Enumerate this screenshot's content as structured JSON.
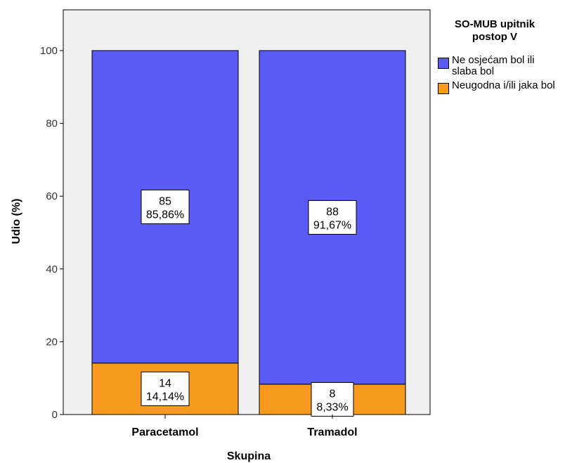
{
  "chart_data": {
    "type": "bar",
    "stacked": true,
    "categories": [
      "Paracetamol",
      "Tramadol"
    ],
    "series": [
      {
        "name": "Neugodna i/ili jaka bol",
        "values": [
          14.14,
          8.33
        ],
        "counts": [
          "14",
          "8"
        ],
        "percent_labels": [
          "14,14%",
          "8,33%"
        ],
        "color": "#F89A1E"
      },
      {
        "name": "Ne osjećam bol ili slaba bol",
        "values": [
          85.86,
          91.67
        ],
        "counts": [
          "85",
          "88"
        ],
        "percent_labels": [
          "85,86%",
          "91,67%"
        ],
        "color": "#5A5AF5"
      }
    ],
    "xlabel": "Skupina",
    "ylabel": "Udio (%)",
    "ylim": [
      0,
      100
    ],
    "yticks": [
      "0",
      "20",
      "40",
      "60",
      "80",
      "100"
    ],
    "legend_placement": "right",
    "plot_background": "#F0F0F0",
    "grid": false
  },
  "legend": {
    "title_line1": "SO-MUB upitnik",
    "title_line2": "postop V",
    "items": [
      {
        "label": "Ne osjećam bol ili slaba bol",
        "color": "#5A5AF5"
      },
      {
        "label": "Neugodna i/ili jaka bol",
        "color": "#F89A1E"
      }
    ]
  }
}
